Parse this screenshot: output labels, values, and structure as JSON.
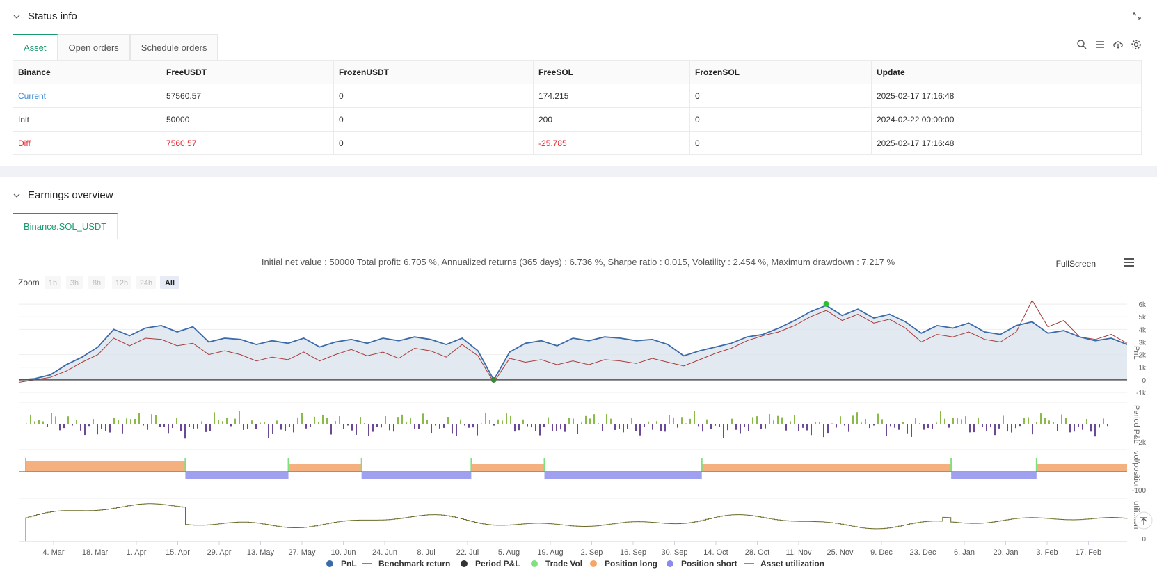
{
  "status_section": {
    "title": "Status info",
    "tabs": [
      "Asset",
      "Open orders",
      "Schedule orders"
    ],
    "active_tab": "Asset",
    "columns": [
      "Binance",
      "FreeUSDT",
      "FrozenUSDT",
      "FreeSOL",
      "FrozenSOL",
      "Update"
    ],
    "rows": [
      {
        "label": "Current",
        "label_color": "#3b8bd6",
        "values": [
          "57560.57",
          "0",
          "174.215",
          "0",
          "2025-02-17 17:16:48"
        ],
        "value_colors": [
          "",
          "",
          "",
          "",
          ""
        ]
      },
      {
        "label": "Init",
        "label_color": "#333333",
        "values": [
          "50000",
          "0",
          "200",
          "0",
          "2024-02-22 00:00:00"
        ],
        "value_colors": [
          "",
          "",
          "",
          "",
          ""
        ]
      },
      {
        "label": "Diff",
        "label_color": "#e8262e",
        "values": [
          "7560.57",
          "0",
          "-25.785",
          "0",
          "2025-02-17 17:16:48"
        ],
        "value_colors": [
          "#e8262e",
          "",
          "#e8262e",
          "",
          ""
        ]
      }
    ],
    "icons": [
      "search-icon",
      "list-icon",
      "cloud-download-icon",
      "settings-icon",
      "expand-icon"
    ]
  },
  "earnings_section": {
    "title": "Earnings overview",
    "tab": "Binance.SOL_USDT"
  },
  "chart": {
    "summary": "Initial net value : 50000 Total profit: 6.705 %, Annualized returns (365 days) : 6.736 %, Sharpe ratio : 0.015, Volatility : 2.454 %, Maximum drawdown : 7.217 %",
    "fullscreen_label": "FullScreen",
    "zoom_label": "Zoom",
    "zoom_buttons": [
      "1h",
      "3h",
      "8h",
      "12h",
      "24h",
      "All"
    ],
    "zoom_active": "All"
  },
  "chart_data": {
    "type": "line",
    "x_tick_labels": [
      "4. Mar",
      "18. Mar",
      "1. Apr",
      "15. Apr",
      "29. Apr",
      "13. May",
      "27. May",
      "10. Jun",
      "24. Jun",
      "8. Jul",
      "22. Jul",
      "5. Aug",
      "19. Aug",
      "2. Sep",
      "16. Sep",
      "30. Sep",
      "14. Oct",
      "28. Oct",
      "11. Nov",
      "25. Nov",
      "9. Dec",
      "23. Dec",
      "6. Jan",
      "20. Jan",
      "3. Feb",
      "17. Feb"
    ],
    "pnl_axis_label": "PnL",
    "pnl_ticks": [
      "6k",
      "5k",
      "4k",
      "3k",
      "2k",
      "1k",
      "0",
      "-1k"
    ],
    "pnl_range": [
      -1000,
      6500
    ],
    "period_axis_label": "Period P&L",
    "period_ticks": [
      "-2k"
    ],
    "position_axis_label": "vol/position",
    "position_ticks": [
      "-100"
    ],
    "util_axis_label": "utili...ion",
    "util_ticks": [
      "0"
    ],
    "pnl_series": [
      0,
      100,
      400,
      1200,
      1800,
      2600,
      4000,
      3500,
      4100,
      4300,
      3800,
      4200,
      3000,
      3300,
      3200,
      2800,
      3100,
      2900,
      3300,
      2600,
      3000,
      3200,
      2900,
      3300,
      3100,
      3400,
      3200,
      2800,
      3300,
      2300,
      0,
      2200,
      2900,
      3100,
      2700,
      3300,
      3100,
      3400,
      3300,
      3100,
      3200,
      2800,
      1900,
      2300,
      2600,
      2900,
      3400,
      3600,
      4100,
      4700,
      5400,
      5900,
      5100,
      5600,
      4900,
      5200,
      4600,
      3700,
      4300,
      4100,
      4500,
      3800,
      3600,
      4300,
      4600,
      3700,
      3900,
      3400,
      3100,
      3300,
      2800
    ],
    "benchmark_series": [
      -200,
      0,
      200,
      700,
      1400,
      2000,
      3300,
      2700,
      3300,
      3200,
      2700,
      2900,
      2000,
      2300,
      2000,
      1500,
      1800,
      1600,
      2200,
      1500,
      2000,
      2400,
      1900,
      2200,
      1700,
      2500,
      2300,
      1800,
      2800,
      1900,
      -200,
      1700,
      1400,
      1600,
      1200,
      1500,
      1200,
      1600,
      1500,
      1300,
      1700,
      1400,
      1100,
      1600,
      2100,
      2500,
      3100,
      3500,
      3800,
      4300,
      5000,
      5500,
      4700,
      5200,
      4500,
      4800,
      4100,
      3000,
      3600,
      3400,
      3800,
      3200,
      3000,
      3800,
      6300,
      4200,
      4700,
      3400,
      3200,
      3600,
      2900
    ],
    "position_segments": [
      {
        "side": "long",
        "start": 0.0,
        "end": 0.144
      },
      {
        "side": "short",
        "start": 0.144,
        "end": 0.237
      },
      {
        "side": "long",
        "start": 0.237,
        "end": 0.303
      },
      {
        "side": "short",
        "start": 0.303,
        "end": 0.402
      },
      {
        "side": "long",
        "start": 0.402,
        "end": 0.468
      },
      {
        "side": "short",
        "start": 0.468,
        "end": 0.61
      },
      {
        "side": "long",
        "start": 0.61,
        "end": 0.835
      },
      {
        "side": "short",
        "start": 0.835,
        "end": 0.912
      },
      {
        "side": "long",
        "start": 0.912,
        "end": 1.0
      }
    ],
    "legend": [
      {
        "name": "PnL",
        "color": "#3a6aa8",
        "marker": "dot"
      },
      {
        "name": "Benchmark return",
        "color": "#a83a3a",
        "marker": "line"
      },
      {
        "name": "Period P&L",
        "color": "#333333",
        "marker": "dot"
      },
      {
        "name": "Trade Vol",
        "color": "#7ee07e",
        "marker": "dot"
      },
      {
        "name": "Position long",
        "color": "#f5a56a",
        "marker": "dot"
      },
      {
        "name": "Position short",
        "color": "#8b8bef",
        "marker": "dot"
      },
      {
        "name": "Asset utilization",
        "color": "#6b6b2a",
        "marker": "line"
      }
    ],
    "colors": {
      "pnl": "#3a6aa8",
      "pnl_fill": "#dbe4ee",
      "benchmark": "#a83a3a",
      "period_pos": "#8aba4a",
      "period_neg": "#6a4a96",
      "long": "#f5b080",
      "short": "#a0a0f0",
      "trade_mark": "#7ee07e",
      "util": "#6b6b2a"
    }
  }
}
